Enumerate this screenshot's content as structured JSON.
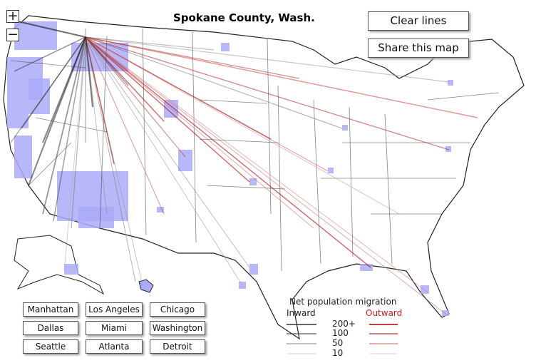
{
  "title": "Spokane County, Wash.",
  "zoom": {
    "in": "+",
    "out": "−"
  },
  "buttons": [
    "Clear lines",
    "Share this map"
  ],
  "cities": [
    "Manhattan",
    "Los Angeles",
    "Chicago",
    "Dallas",
    "Miami",
    "Washington",
    "Seattle",
    "Atlanta",
    "Detroit"
  ],
  "legend": {
    "title": "Net population migration",
    "inward": "Inward",
    "outward": "Outward",
    "levels": [
      "200+",
      "100",
      "50",
      "10"
    ]
  }
}
